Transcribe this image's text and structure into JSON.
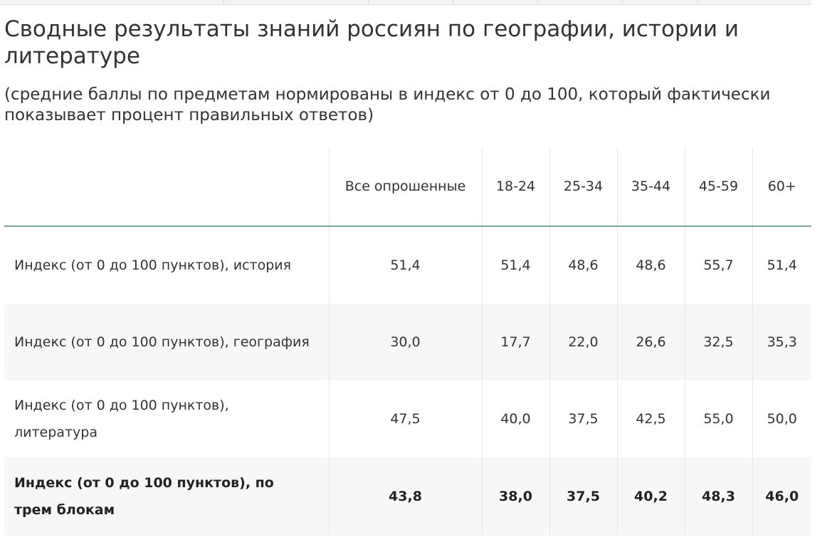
{
  "title": "Сводные результаты знаний россиян по географии, истории и литературе",
  "subtitle": "(средние баллы по предметам нормированы в индекс от 0 до 100, который фактически показывает процент правильных ответов)",
  "table": {
    "headers": [
      "",
      "Все опрошенные",
      "18-24",
      "25-34",
      "35-44",
      "45-59",
      "60+"
    ],
    "rows": [
      {
        "label": "Индекс (от 0 до 100 пунктов), история",
        "values": [
          "51,4",
          "51,4",
          "48,6",
          "48,6",
          "55,7",
          "51,4"
        ]
      },
      {
        "label": "Индекс (от 0 до 100 пунктов), география",
        "values": [
          "30,0",
          "17,7",
          "22,0",
          "26,6",
          "32,5",
          "35,3"
        ]
      },
      {
        "label": "Индекс (от 0 до 100 пунктов), литература",
        "values": [
          "47,5",
          "40,0",
          "37,5",
          "42,5",
          "55,0",
          "50,0"
        ]
      },
      {
        "label": "Индекс (от 0 до 100 пунктов), по трем блокам",
        "values": [
          "43,8",
          "38,0",
          "37,5",
          "40,2",
          "48,3",
          "46,0"
        ]
      }
    ]
  }
}
